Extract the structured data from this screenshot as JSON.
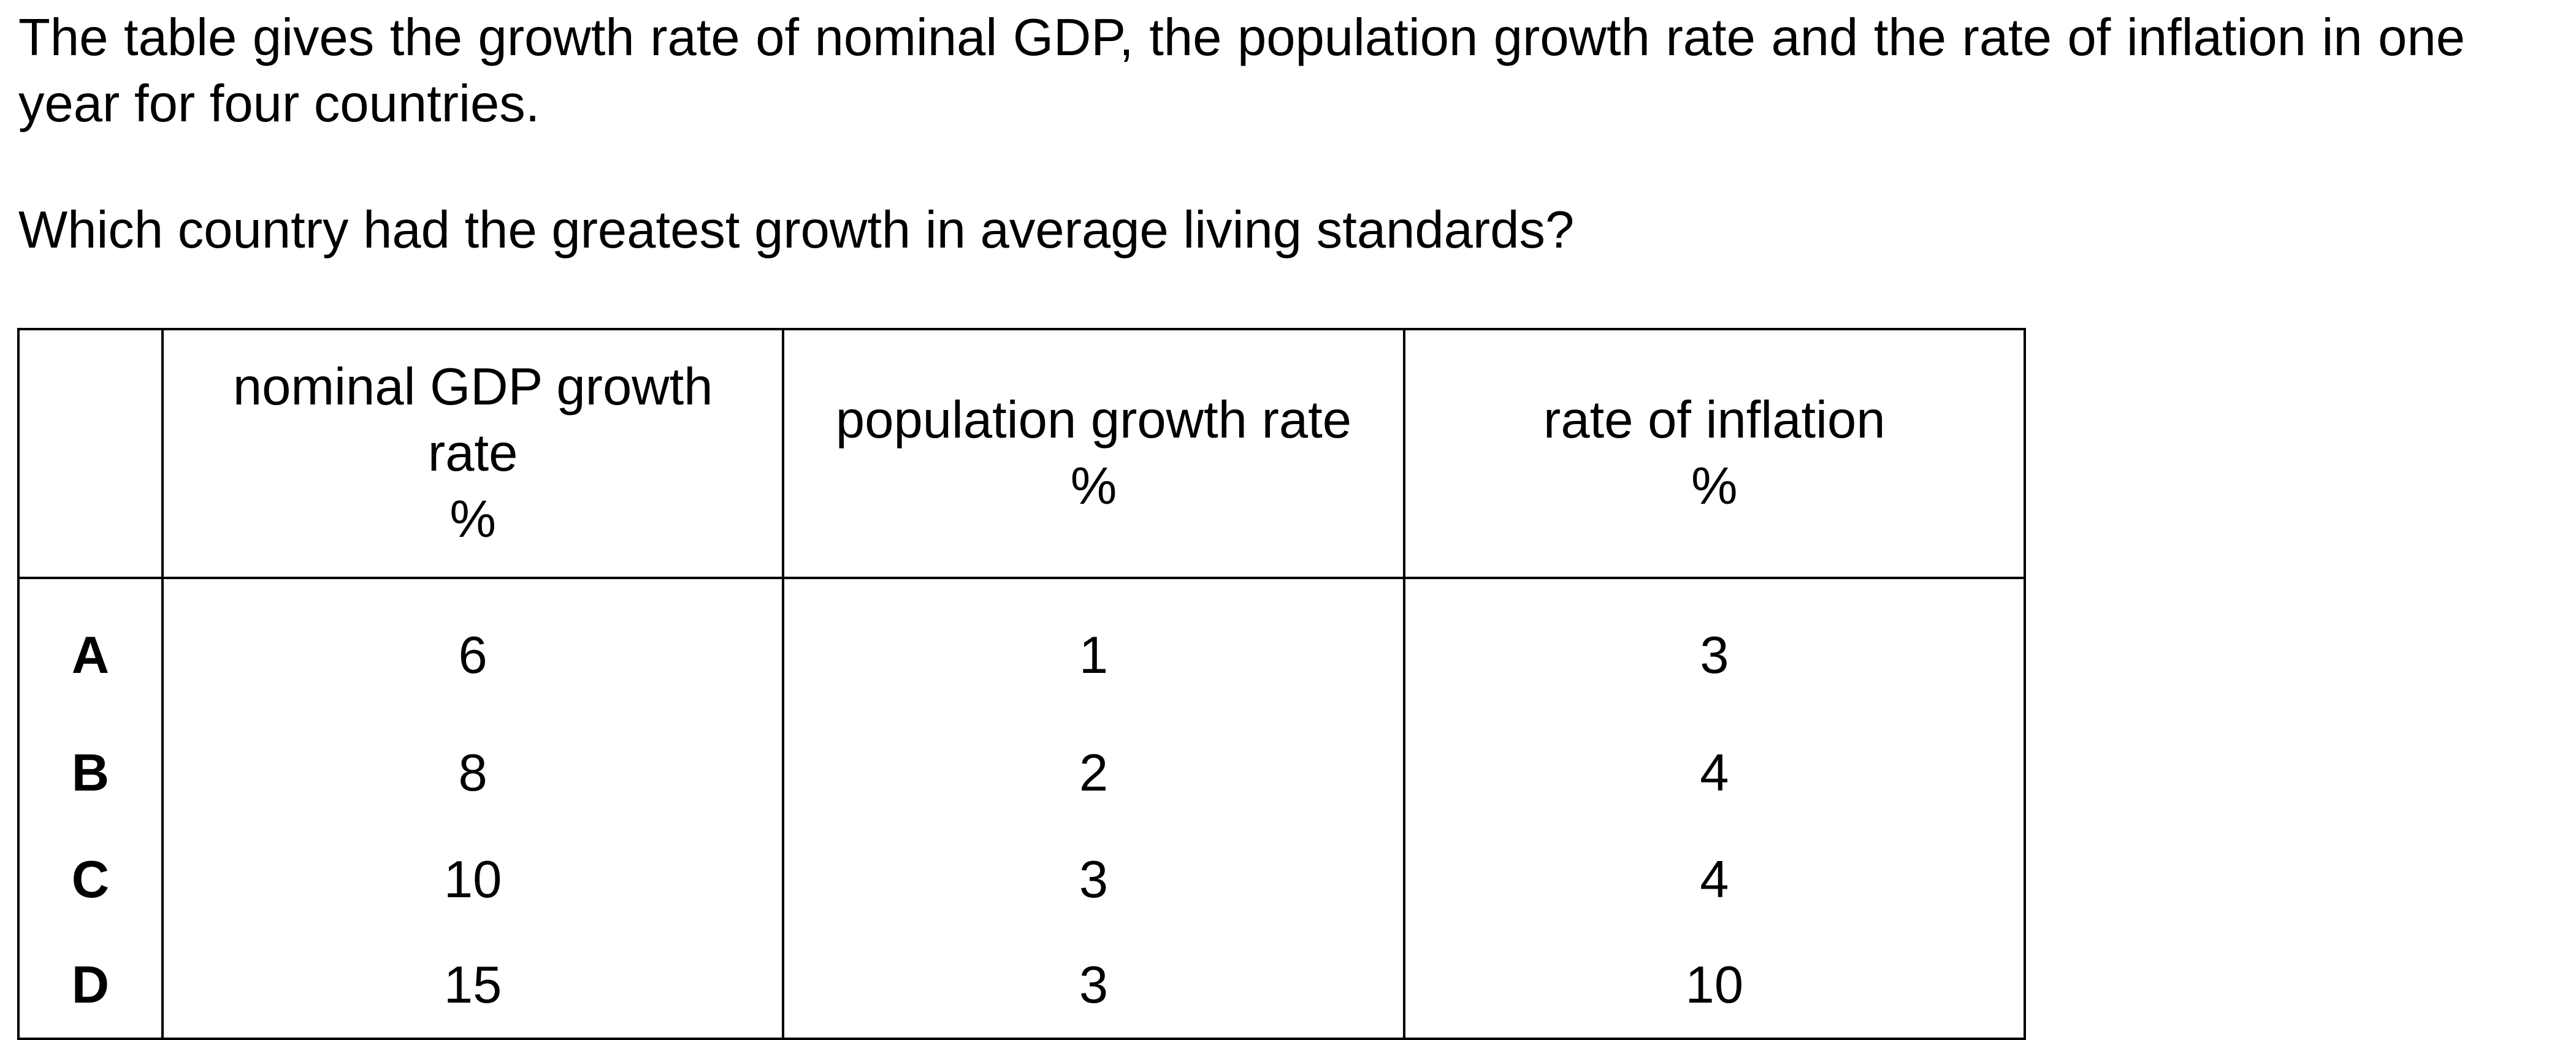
{
  "question": {
    "intro": "The table gives the growth rate of nominal GDP, the population growth rate and the rate of inflation in one year for four countries.",
    "prompt": "Which country had the greatest growth in average living standards?"
  },
  "table": {
    "headers": {
      "label": "",
      "gdp": [
        "nominal GDP growth",
        "rate",
        "%"
      ],
      "population": [
        "population growth rate",
        "%"
      ],
      "inflation": [
        "rate of inflation",
        "%"
      ]
    },
    "rows": [
      {
        "label": "A",
        "gdp": "6",
        "population": "1",
        "inflation": "3"
      },
      {
        "label": "B",
        "gdp": "8",
        "population": "2",
        "inflation": "4"
      },
      {
        "label": "C",
        "gdp": "10",
        "population": "3",
        "inflation": "4"
      },
      {
        "label": "D",
        "gdp": "15",
        "population": "3",
        "inflation": "10"
      }
    ]
  }
}
